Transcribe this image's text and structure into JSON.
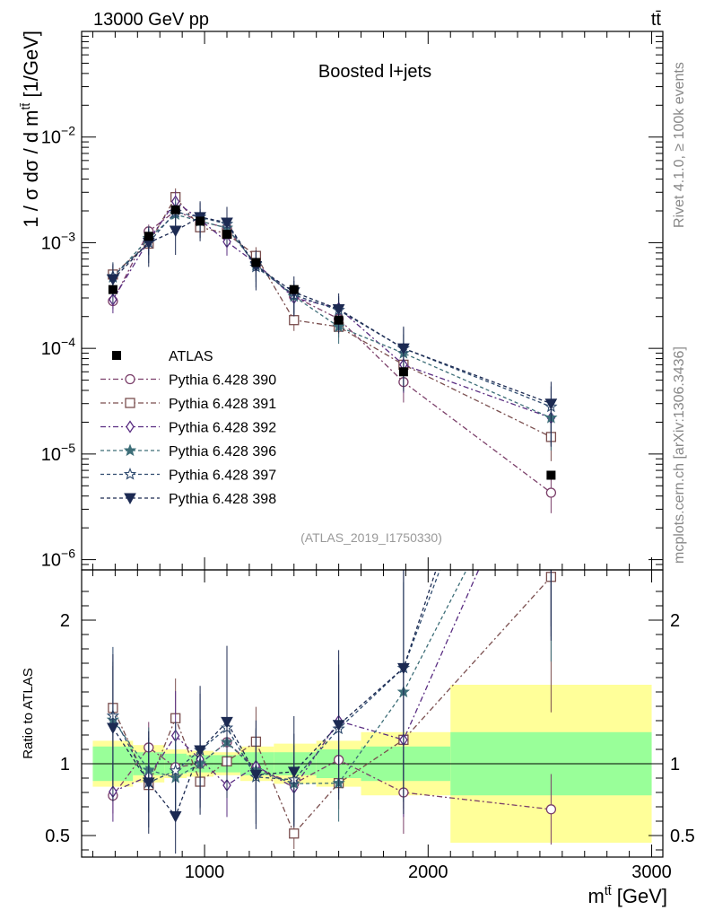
{
  "header": {
    "left": "13000 GeV pp",
    "right": "tt̄"
  },
  "side": {
    "rivet": "Rivet 4.1.0, ≥ 100k events",
    "mcplots": "mcplots.cern.ch [arXiv:1306.3436]"
  },
  "chart_data": {
    "type": "line",
    "title": "Boosted l+jets",
    "analysis_tag": "(ATLAS_2019_I1750330)",
    "ylabel": "1 / σ dσ / d m^{tt̄} [1/GeV]",
    "ylabel_parts": {
      "a": "1 / σ dσ / d m",
      "sup": "tt̄",
      "b": " [1/GeV]"
    },
    "xlabel": "m^{tt̄} [GeV]",
    "xlabel_parts": {
      "a": "m",
      "sup": "tt̄",
      "b": " [GeV]"
    },
    "ratio_ylabel": "Ratio to ATLAS",
    "xlim": [
      450,
      3050
    ],
    "ylim": [
      8e-07,
      0.1
    ],
    "yscale": "log",
    "ratio_ylim": [
      0.35,
      2.35
    ],
    "x_ticks": [
      {
        "value": 1000,
        "label": "1000"
      },
      {
        "value": 2000,
        "label": "2000"
      },
      {
        "value": 3000,
        "label": "3000"
      }
    ],
    "y_ticks": [
      {
        "value": 1e-06,
        "base": "10",
        "exp": "−6"
      },
      {
        "value": 1e-05,
        "base": "10",
        "exp": "−5"
      },
      {
        "value": 0.0001,
        "base": "10",
        "exp": "−4"
      },
      {
        "value": 0.001,
        "base": "10",
        "exp": "−3"
      },
      {
        "value": 0.01,
        "base": "10",
        "exp": "−2"
      }
    ],
    "ratio_ticks": [
      {
        "value": 0.5,
        "label": "0.5"
      },
      {
        "value": 1,
        "label": "1"
      },
      {
        "value": 2,
        "label": "2"
      }
    ],
    "bin_edges": [
      500,
      680,
      820,
      920,
      1040,
      1160,
      1310,
      1500,
      1700,
      2100,
      3000
    ],
    "x": [
      590,
      750,
      870,
      980,
      1100,
      1230,
      1400,
      1600,
      1890,
      2550
    ],
    "data": {
      "name": "ATLAS",
      "values": [
        0.00036,
        0.00115,
        0.00205,
        0.0016,
        0.0012,
        0.00065,
        0.00036,
        0.000185,
        6e-05,
        6.3e-06
      ],
      "band_inner": [
        0.12,
        0.08,
        0.07,
        0.06,
        0.06,
        0.08,
        0.08,
        0.1,
        0.12,
        0.22
      ],
      "band_outer": [
        0.16,
        0.13,
        0.1,
        0.09,
        0.08,
        0.12,
        0.14,
        0.16,
        0.22,
        0.55
      ]
    },
    "series": [
      {
        "name": "Pythia 6.428 390",
        "color": "#7b3f6a",
        "marker": "circle-open",
        "dash": "6,3,2,3",
        "values": [
          0.00028,
          0.00128,
          0.002,
          0.0016,
          0.00138,
          0.00063,
          0.00031,
          0.00019,
          4.8e-05,
          4.3e-06
        ]
      },
      {
        "name": "Pythia 6.428 391",
        "color": "#7a4e4e",
        "marker": "square-open",
        "dash": "6,3,2,3",
        "values": [
          0.0005,
          0.00098,
          0.0027,
          0.0014,
          0.00122,
          0.00075,
          0.000185,
          0.00016,
          7e-05,
          1.45e-05
        ]
      },
      {
        "name": "Pythia 6.428 392",
        "color": "#5a2d82",
        "marker": "diamond-open",
        "dash": "6,3,2,3",
        "values": [
          0.00029,
          0.00105,
          0.00245,
          0.00165,
          0.00102,
          0.00064,
          0.0003,
          0.00024,
          7e-05,
          2.2e-05
        ]
      },
      {
        "name": "Pythia 6.428 396",
        "color": "#3d6e78",
        "marker": "star-filled",
        "dash": "4,3",
        "values": [
          0.00047,
          0.0011,
          0.00185,
          0.0016,
          0.00138,
          0.00062,
          0.00031,
          0.00016,
          9e-05,
          2.2e-05
        ]
      },
      {
        "name": "Pythia 6.428 397",
        "color": "#2e4a6e",
        "marker": "star-open",
        "dash": "4,3",
        "values": [
          0.00048,
          0.001,
          0.00195,
          0.00175,
          0.0015,
          0.00059,
          0.00032,
          0.00023,
          0.0001,
          2.8e-05
        ]
      },
      {
        "name": "Pythia 6.428 398",
        "color": "#1c2a52",
        "marker": "triangle-down",
        "dash": "4,3",
        "values": [
          0.00045,
          0.001,
          0.0013,
          0.00175,
          0.00155,
          0.0006,
          0.00034,
          0.000235,
          0.0001,
          3e-05
        ]
      }
    ],
    "legend_position": "left-middle"
  }
}
